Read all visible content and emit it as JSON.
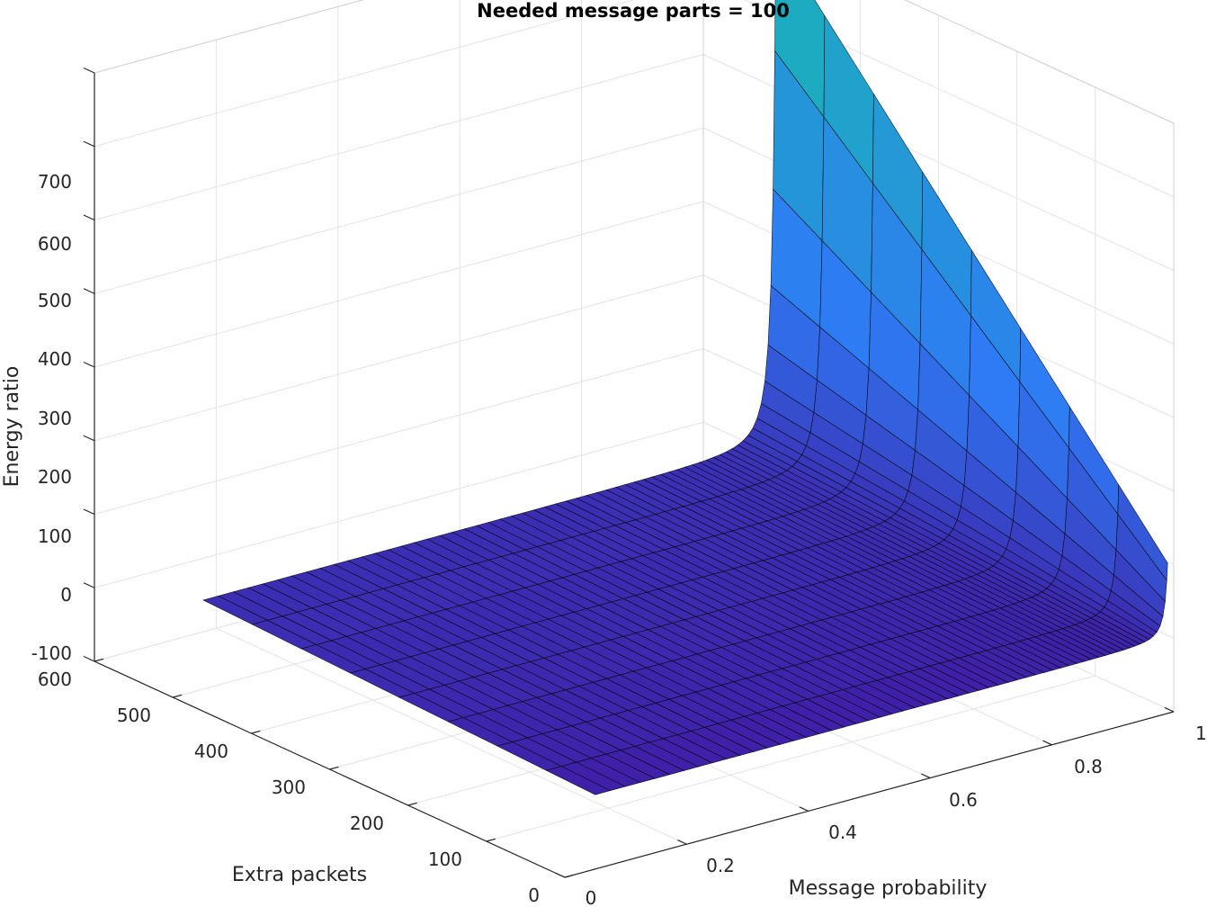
{
  "chart_data": {
    "type": "surface",
    "title": "Needed message parts = 100",
    "xlabel": "Message probability",
    "ylabel": "Extra packets",
    "zlabel": "Energy ratio",
    "xlim": [
      0,
      1
    ],
    "ylim": [
      0,
      600
    ],
    "zlim": [
      -100,
      700
    ],
    "x_ticks": [
      "0",
      "0.2",
      "0.4",
      "0.6",
      "0.8",
      "1"
    ],
    "y_ticks": [
      "0",
      "100",
      "200",
      "300",
      "400",
      "500",
      "600"
    ],
    "z_ticks": [
      "-100",
      "0",
      "100",
      "200",
      "300",
      "400",
      "500",
      "600",
      "700"
    ],
    "grid": true,
    "surface_x_range": [
      0.05,
      0.99
    ],
    "surface_y_range": [
      0,
      500
    ],
    "surface_z_range": [
      1,
      690
    ],
    "description_formula": "energy ratio grows with extra packets and sharply as message probability approaches 1",
    "colors": {
      "low": "#3e1fa6",
      "mid": "#2f7af5",
      "high": "#19b8b5",
      "edge": "#000000"
    }
  }
}
